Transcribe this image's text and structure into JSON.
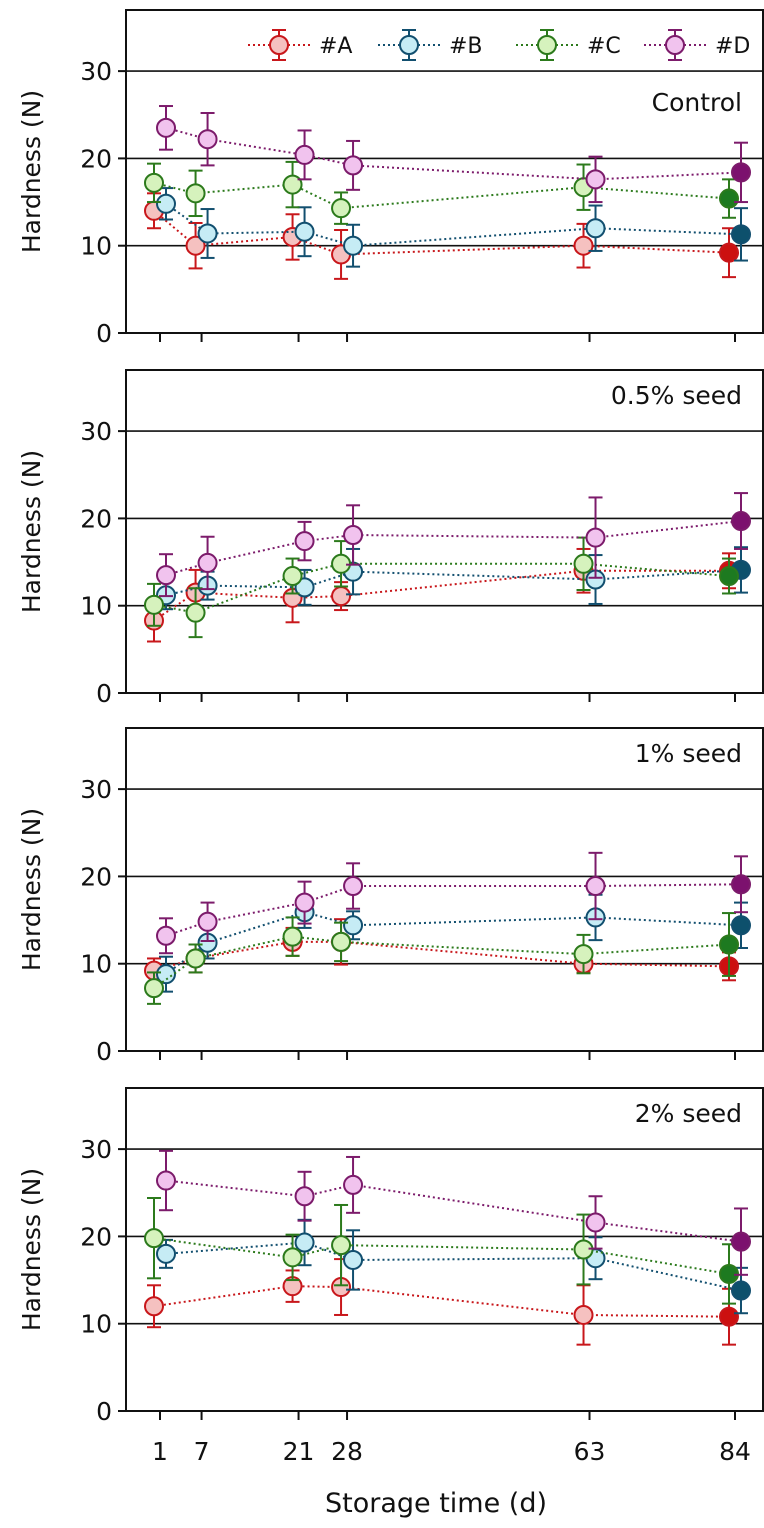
{
  "chart_data": {
    "type": "line",
    "xlabel": "Storage time (d)",
    "x_ticks": [
      1,
      7,
      21,
      28,
      63,
      84
    ],
    "legend": {
      "placement": "top-right",
      "entries": [
        "#A",
        "#B",
        "#C",
        "#D"
      ]
    },
    "series_colors": {
      "#A": {
        "stroke": "#c8171b",
        "fill": "#f5c1c0",
        "solid": "#cc1010"
      },
      "#B": {
        "stroke": "#124f6f",
        "fill": "#c6ecf5",
        "solid": "#0d506c"
      },
      "#C": {
        "stroke": "#2c7a1c",
        "fill": "#d6f2bd",
        "solid": "#1d7a20"
      },
      "#D": {
        "stroke": "#7c1b6b",
        "fill": "#f1c3ee",
        "solid": "#7c116e"
      }
    },
    "grid": "horizontal",
    "panels": [
      {
        "label": "Control",
        "ylabel": "Hardness (N)",
        "yticks": [
          0,
          10,
          20,
          30
        ],
        "ylim": [
          0,
          37
        ],
        "series": [
          {
            "name": "#A",
            "points": [
              {
                "x": 1,
                "y": 14.0,
                "err": 2.0
              },
              {
                "x": 7,
                "y": 10.0,
                "err": 2.6
              },
              {
                "x": 21,
                "y": 11.0,
                "err": 2.6
              },
              {
                "x": 28,
                "y": 9.0,
                "err": 2.8
              },
              {
                "x": 63,
                "y": 10.0,
                "err": 2.5
              },
              {
                "x": 84,
                "y": 9.2,
                "err": 2.8
              }
            ]
          },
          {
            "name": "#B",
            "points": [
              {
                "x": 1,
                "y": 14.8,
                "err": 1.8
              },
              {
                "x": 7,
                "y": 11.4,
                "err": 2.8
              },
              {
                "x": 21,
                "y": 11.6,
                "err": 2.8
              },
              {
                "x": 28,
                "y": 10.0,
                "err": 2.4
              },
              {
                "x": 63,
                "y": 12.0,
                "err": 2.6
              },
              {
                "x": 84,
                "y": 11.3,
                "err": 3.0
              }
            ]
          },
          {
            "name": "#C",
            "points": [
              {
                "x": 1,
                "y": 17.2,
                "err": 2.2
              },
              {
                "x": 7,
                "y": 16.0,
                "err": 2.6
              },
              {
                "x": 21,
                "y": 17.0,
                "err": 2.6
              },
              {
                "x": 28,
                "y": 14.3,
                "err": 1.8
              },
              {
                "x": 63,
                "y": 16.7,
                "err": 2.6
              },
              {
                "x": 84,
                "y": 15.4,
                "err": 2.2
              }
            ]
          },
          {
            "name": "#D",
            "points": [
              {
                "x": 1,
                "y": 23.5,
                "err": 2.5
              },
              {
                "x": 7,
                "y": 22.2,
                "err": 3.0
              },
              {
                "x": 21,
                "y": 20.4,
                "err": 2.8
              },
              {
                "x": 28,
                "y": 19.2,
                "err": 2.8
              },
              {
                "x": 63,
                "y": 17.6,
                "err": 2.6
              },
              {
                "x": 84,
                "y": 18.4,
                "err": 3.4
              }
            ]
          }
        ]
      },
      {
        "label": "0.5% seed",
        "ylabel": "Hardness (N)",
        "yticks": [
          0,
          10,
          20,
          30
        ],
        "ylim": [
          0,
          37
        ],
        "series": [
          {
            "name": "#A",
            "points": [
              {
                "x": 1,
                "y": 8.3,
                "err": 2.4
              },
              {
                "x": 7,
                "y": 11.5,
                "err": 2.6
              },
              {
                "x": 21,
                "y": 10.9,
                "err": 2.8
              },
              {
                "x": 28,
                "y": 11.1,
                "err": 1.6
              },
              {
                "x": 63,
                "y": 14.0,
                "err": 2.5
              },
              {
                "x": 84,
                "y": 14.0,
                "err": 2.0
              }
            ]
          },
          {
            "name": "#B",
            "points": [
              {
                "x": 1,
                "y": 11.2,
                "err": 1.6
              },
              {
                "x": 7,
                "y": 12.3,
                "err": 1.6
              },
              {
                "x": 21,
                "y": 12.1,
                "err": 2.0
              },
              {
                "x": 28,
                "y": 13.9,
                "err": 2.6
              },
              {
                "x": 63,
                "y": 13.0,
                "err": 2.8
              },
              {
                "x": 84,
                "y": 14.1,
                "err": 2.6
              }
            ]
          },
          {
            "name": "#C",
            "points": [
              {
                "x": 1,
                "y": 10.1,
                "err": 2.4
              },
              {
                "x": 7,
                "y": 9.2,
                "err": 2.8
              },
              {
                "x": 21,
                "y": 13.4,
                "err": 2.0
              },
              {
                "x": 28,
                "y": 14.8,
                "err": 2.6
              },
              {
                "x": 63,
                "y": 14.8,
                "err": 3.0
              },
              {
                "x": 84,
                "y": 13.4,
                "err": 2.0
              }
            ]
          },
          {
            "name": "#D",
            "points": [
              {
                "x": 1,
                "y": 13.5,
                "err": 2.4
              },
              {
                "x": 7,
                "y": 14.9,
                "err": 3.0
              },
              {
                "x": 21,
                "y": 17.4,
                "err": 2.2
              },
              {
                "x": 28,
                "y": 18.1,
                "err": 3.4
              },
              {
                "x": 63,
                "y": 17.8,
                "err": 4.6
              },
              {
                "x": 84,
                "y": 19.7,
                "err": 3.2
              }
            ]
          }
        ]
      },
      {
        "label": "1% seed",
        "ylabel": "Hardness (N)",
        "yticks": [
          0,
          10,
          20,
          30
        ],
        "ylim": [
          0,
          37
        ],
        "series": [
          {
            "name": "#A",
            "points": [
              {
                "x": 1,
                "y": 9.2,
                "err": 1.4
              },
              {
                "x": 7,
                "y": 10.6,
                "err": 1.6
              },
              {
                "x": 21,
                "y": 12.5,
                "err": 1.6
              },
              {
                "x": 28,
                "y": 12.5,
                "err": 2.6
              },
              {
                "x": 63,
                "y": 10.0,
                "err": 1.0
              },
              {
                "x": 84,
                "y": 9.7,
                "err": 1.6
              }
            ]
          },
          {
            "name": "#B",
            "points": [
              {
                "x": 1,
                "y": 8.8,
                "err": 2.0
              },
              {
                "x": 7,
                "y": 12.4,
                "err": 1.8
              },
              {
                "x": 21,
                "y": 15.9,
                "err": 1.8
              },
              {
                "x": 28,
                "y": 14.4,
                "err": 1.6
              },
              {
                "x": 63,
                "y": 15.3,
                "err": 2.6
              },
              {
                "x": 84,
                "y": 14.4,
                "err": 2.6
              }
            ]
          },
          {
            "name": "#C",
            "points": [
              {
                "x": 1,
                "y": 7.2,
                "err": 1.8
              },
              {
                "x": 7,
                "y": 10.6,
                "err": 1.6
              },
              {
                "x": 21,
                "y": 13.1,
                "err": 2.2
              },
              {
                "x": 28,
                "y": 12.5,
                "err": 2.2
              },
              {
                "x": 63,
                "y": 11.1,
                "err": 2.2
              },
              {
                "x": 84,
                "y": 12.2,
                "err": 3.6
              }
            ]
          },
          {
            "name": "#D",
            "points": [
              {
                "x": 1,
                "y": 13.2,
                "err": 2.0
              },
              {
                "x": 7,
                "y": 14.8,
                "err": 2.2
              },
              {
                "x": 21,
                "y": 17.0,
                "err": 2.4
              },
              {
                "x": 28,
                "y": 18.9,
                "err": 2.6
              },
              {
                "x": 63,
                "y": 18.9,
                "err": 3.8
              },
              {
                "x": 84,
                "y": 19.1,
                "err": 3.2
              }
            ]
          }
        ]
      },
      {
        "label": "2% seed",
        "ylabel": "Hardness (N)",
        "yticks": [
          0,
          10,
          20,
          30
        ],
        "ylim": [
          0,
          37
        ],
        "series": [
          {
            "name": "#A",
            "points": [
              {
                "x": 1,
                "y": 12.0,
                "err": 2.4
              },
              {
                "x": 7,
                "y": null,
                "err": null
              },
              {
                "x": 21,
                "y": 14.3,
                "err": 1.8
              },
              {
                "x": 28,
                "y": 14.2,
                "err": 3.2
              },
              {
                "x": 63,
                "y": 11.0,
                "err": 3.4
              },
              {
                "x": 84,
                "y": 10.8,
                "err": 3.2
              }
            ]
          },
          {
            "name": "#B",
            "points": [
              {
                "x": 1,
                "y": 18.0,
                "err": 1.6
              },
              {
                "x": 7,
                "y": null,
                "err": null
              },
              {
                "x": 21,
                "y": 19.3,
                "err": 2.6
              },
              {
                "x": 28,
                "y": 17.3,
                "err": 3.4
              },
              {
                "x": 63,
                "y": 17.5,
                "err": 2.4
              },
              {
                "x": 84,
                "y": 13.8,
                "err": 2.6
              }
            ]
          },
          {
            "name": "#C",
            "points": [
              {
                "x": 1,
                "y": 19.8,
                "err": 4.6
              },
              {
                "x": 7,
                "y": null,
                "err": null
              },
              {
                "x": 21,
                "y": 17.6,
                "err": 2.6
              },
              {
                "x": 28,
                "y": 19.0,
                "err": 4.6
              },
              {
                "x": 63,
                "y": 18.5,
                "err": 4.0
              },
              {
                "x": 84,
                "y": 15.7,
                "err": 3.4
              }
            ]
          },
          {
            "name": "#D",
            "points": [
              {
                "x": 1,
                "y": 26.4,
                "err": 3.4
              },
              {
                "x": 7,
                "y": null,
                "err": null
              },
              {
                "x": 21,
                "y": 24.6,
                "err": 2.8
              },
              {
                "x": 28,
                "y": 25.9,
                "err": 3.2
              },
              {
                "x": 63,
                "y": 21.6,
                "err": 3.0
              },
              {
                "x": 84,
                "y": 19.4,
                "err": 3.8
              }
            ]
          }
        ]
      }
    ]
  }
}
